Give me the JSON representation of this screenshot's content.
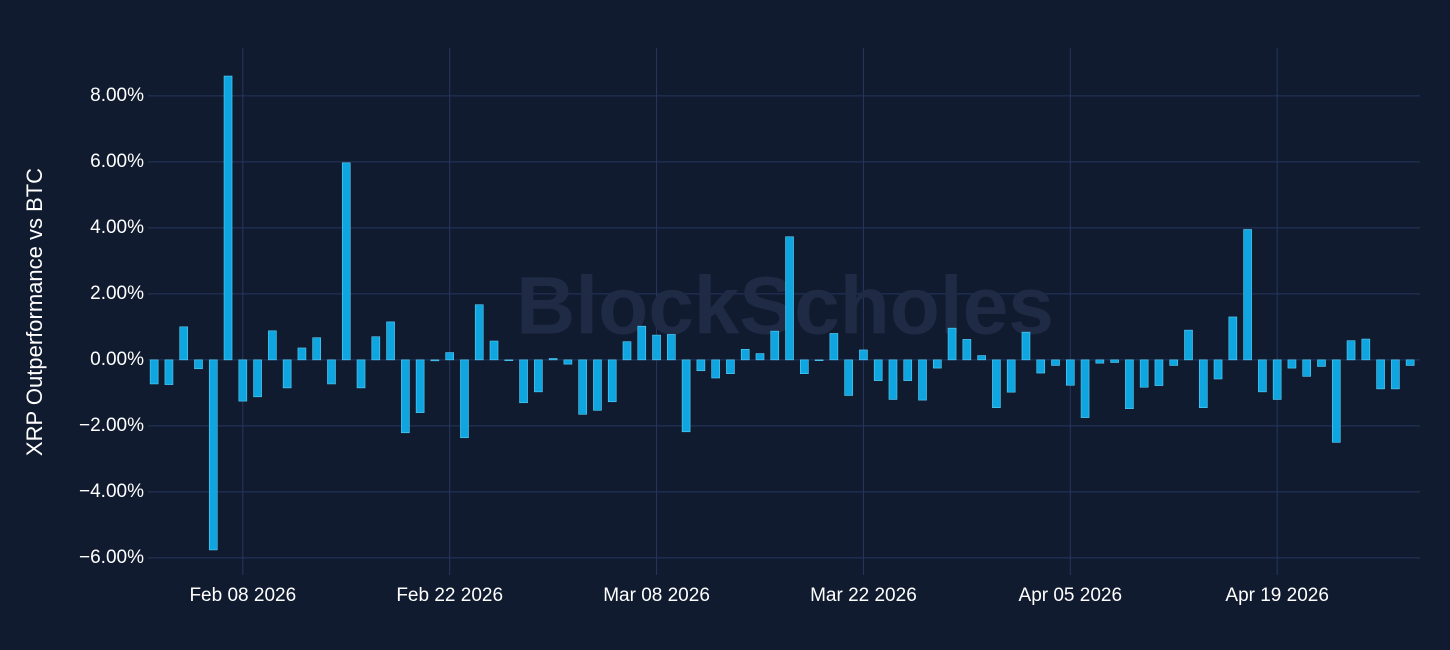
{
  "chart_data": {
    "type": "bar",
    "y_label": "XRP Outperformance vs BTC",
    "watermark": "BlockScholes",
    "color": "#0ea5e0",
    "grid": true,
    "x": [
      "2026-02-02",
      "2026-02-03",
      "2026-02-04",
      "2026-02-05",
      "2026-02-06",
      "2026-02-07",
      "2026-02-08",
      "2026-02-09",
      "2026-02-10",
      "2026-02-11",
      "2026-02-12",
      "2026-02-13",
      "2026-02-14",
      "2026-02-15",
      "2026-02-16",
      "2026-02-17",
      "2026-02-18",
      "2026-02-19",
      "2026-02-20",
      "2026-02-21",
      "2026-02-22",
      "2026-02-23",
      "2026-02-24",
      "2026-02-25",
      "2026-02-26",
      "2026-02-27",
      "2026-02-28",
      "2026-03-01",
      "2026-03-02",
      "2026-03-03",
      "2026-03-04",
      "2026-03-05",
      "2026-03-06",
      "2026-03-07",
      "2026-03-08",
      "2026-03-09",
      "2026-03-10",
      "2026-03-11",
      "2026-03-12",
      "2026-03-13",
      "2026-03-14",
      "2026-03-15",
      "2026-03-16",
      "2026-03-17",
      "2026-03-18",
      "2026-03-19",
      "2026-03-20",
      "2026-03-21",
      "2026-03-22",
      "2026-03-23",
      "2026-03-24",
      "2026-03-25",
      "2026-03-26",
      "2026-03-27",
      "2026-03-28",
      "2026-03-29",
      "2026-03-30",
      "2026-03-31",
      "2026-04-01",
      "2026-04-02",
      "2026-04-03",
      "2026-04-04",
      "2026-04-05",
      "2026-04-06",
      "2026-04-07",
      "2026-04-08",
      "2026-04-09",
      "2026-04-10",
      "2026-04-11",
      "2026-04-12",
      "2026-04-13",
      "2026-04-14",
      "2026-04-15",
      "2026-04-16",
      "2026-04-17",
      "2026-04-18",
      "2026-04-19",
      "2026-04-20",
      "2026-04-21",
      "2026-04-22",
      "2026-04-23",
      "2026-04-24",
      "2026-04-25",
      "2026-04-26",
      "2026-04-27",
      "2026-04-28"
    ],
    "values": [
      -0.73,
      -0.75,
      1.0,
      -0.27,
      -5.76,
      8.6,
      -1.25,
      -1.12,
      0.88,
      -0.85,
      0.36,
      0.67,
      -0.73,
      5.97,
      -0.85,
      0.7,
      1.15,
      -2.21,
      -1.6,
      -0.03,
      0.22,
      -2.36,
      1.67,
      0.57,
      -0.02,
      -1.3,
      -0.97,
      0.04,
      -0.13,
      -1.65,
      -1.53,
      -1.27,
      0.55,
      1.02,
      0.75,
      0.77,
      -2.18,
      -0.33,
      -0.55,
      -0.42,
      0.32,
      0.19,
      0.87,
      3.73,
      -0.42,
      -0.02,
      0.8,
      -1.08,
      0.3,
      -0.63,
      -1.2,
      -0.63,
      -1.22,
      -0.25,
      0.96,
      0.62,
      0.13,
      -1.45,
      -0.98,
      0.84,
      -0.4,
      -0.17,
      -0.77,
      -1.75,
      -0.1,
      -0.08,
      -1.48,
      -0.83,
      -0.78,
      -0.17,
      0.9,
      -1.45,
      -0.58,
      1.3,
      3.95,
      -0.97,
      -1.2,
      -0.25,
      -0.5,
      -0.2,
      -2.5,
      0.58,
      0.63,
      -0.88,
      -0.88,
      -0.17
    ],
    "xlim": [
      "2026-02-01T14:00",
      "2026-04-28T16:00"
    ],
    "xticks": [
      {
        "value": "2026-02-08",
        "label": "Feb 08 2026"
      },
      {
        "value": "2026-02-22",
        "label": "Feb 22 2026"
      },
      {
        "value": "2026-03-08",
        "label": "Mar 08 2026"
      },
      {
        "value": "2026-03-22",
        "label": "Mar 22 2026"
      },
      {
        "value": "2026-04-05",
        "label": "Apr 05 2026"
      },
      {
        "value": "2026-04-19",
        "label": "Apr 19 2026"
      }
    ],
    "ylim": [
      -6.52,
      9.45
    ],
    "yticks": [
      {
        "value": -6,
        "label": "−6.00%"
      },
      {
        "value": -4,
        "label": "−4.00%"
      },
      {
        "value": -2,
        "label": "−2.00%"
      },
      {
        "value": 0,
        "label": "0.00%"
      },
      {
        "value": 2,
        "label": "2.00%"
      },
      {
        "value": 4,
        "label": "4.00%"
      },
      {
        "value": 6,
        "label": "6.00%"
      },
      {
        "value": 8,
        "label": "8.00%"
      }
    ]
  }
}
